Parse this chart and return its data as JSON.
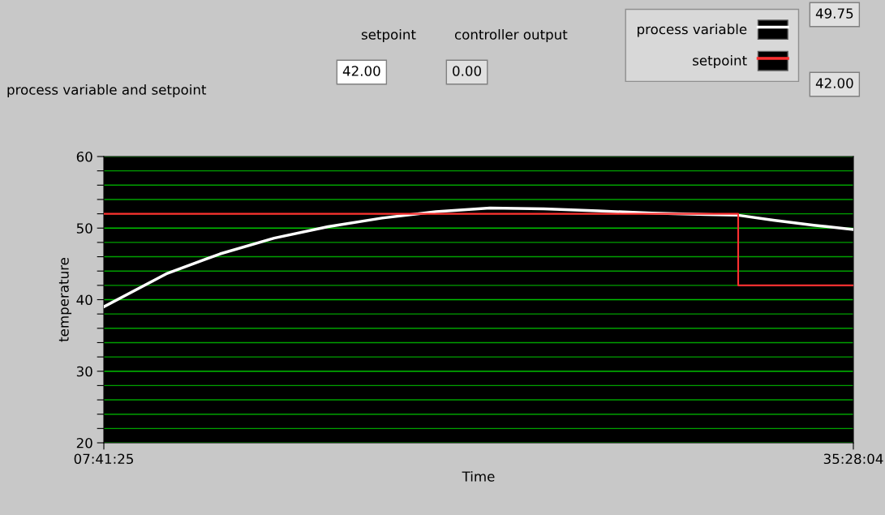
{
  "chart_data": {
    "type": "line",
    "title": "process variable and setpoint",
    "xlabel": "Time",
    "ylabel": "temperature",
    "x": [
      7.690278,
      10.0,
      12.0,
      14.0,
      16.0,
      18.0,
      20.0,
      22.0,
      24.0,
      26.0,
      28.0,
      30.0,
      31.2,
      32.5,
      34.0,
      35.467778
    ],
    "series": [
      {
        "name": "process variable",
        "color": "#ffffff",
        "values": [
          39.0,
          43.6,
          46.4,
          48.6,
          50.2,
          51.4,
          52.3,
          52.8,
          52.7,
          52.4,
          52.1,
          51.9,
          51.8,
          51.1,
          50.4,
          49.8
        ]
      },
      {
        "name": "setpoint",
        "color": "#ff3030",
        "type": "step",
        "x": [
          7.690278,
          31.2,
          35.467778
        ],
        "values": [
          52.0,
          42.0,
          42.0
        ]
      }
    ],
    "xlim": [
      7.690278,
      35.467778
    ],
    "xticks": [
      {
        "value": 7.690278,
        "label": "07:41:25"
      },
      {
        "value": 35.467778,
        "label": "35:28:04"
      }
    ],
    "ylim": [
      20,
      60
    ],
    "yticks": [
      20,
      {
        "value": 22,
        "label": null
      },
      {
        "value": 24,
        "label": null
      },
      {
        "value": 26,
        "label": null
      },
      {
        "value": 28,
        "label": null
      },
      30,
      {
        "value": 32,
        "label": null
      },
      {
        "value": 34,
        "label": null
      },
      {
        "value": 36,
        "label": null
      },
      {
        "value": 38,
        "label": null
      },
      40,
      {
        "value": 42,
        "label": null
      },
      {
        "value": 44,
        "label": null
      },
      {
        "value": 46,
        "label": null
      },
      {
        "value": 48,
        "label": null
      },
      50,
      {
        "value": 52,
        "label": null
      },
      {
        "value": 54,
        "label": null
      },
      {
        "value": 56,
        "label": null
      },
      {
        "value": 58,
        "label": null
      },
      60
    ],
    "grid": "y",
    "legend": "top right",
    "annotations": [
      "setpoint",
      "42.00",
      "controller output",
      "0.00",
      "49.75",
      "42.00"
    ]
  }
}
